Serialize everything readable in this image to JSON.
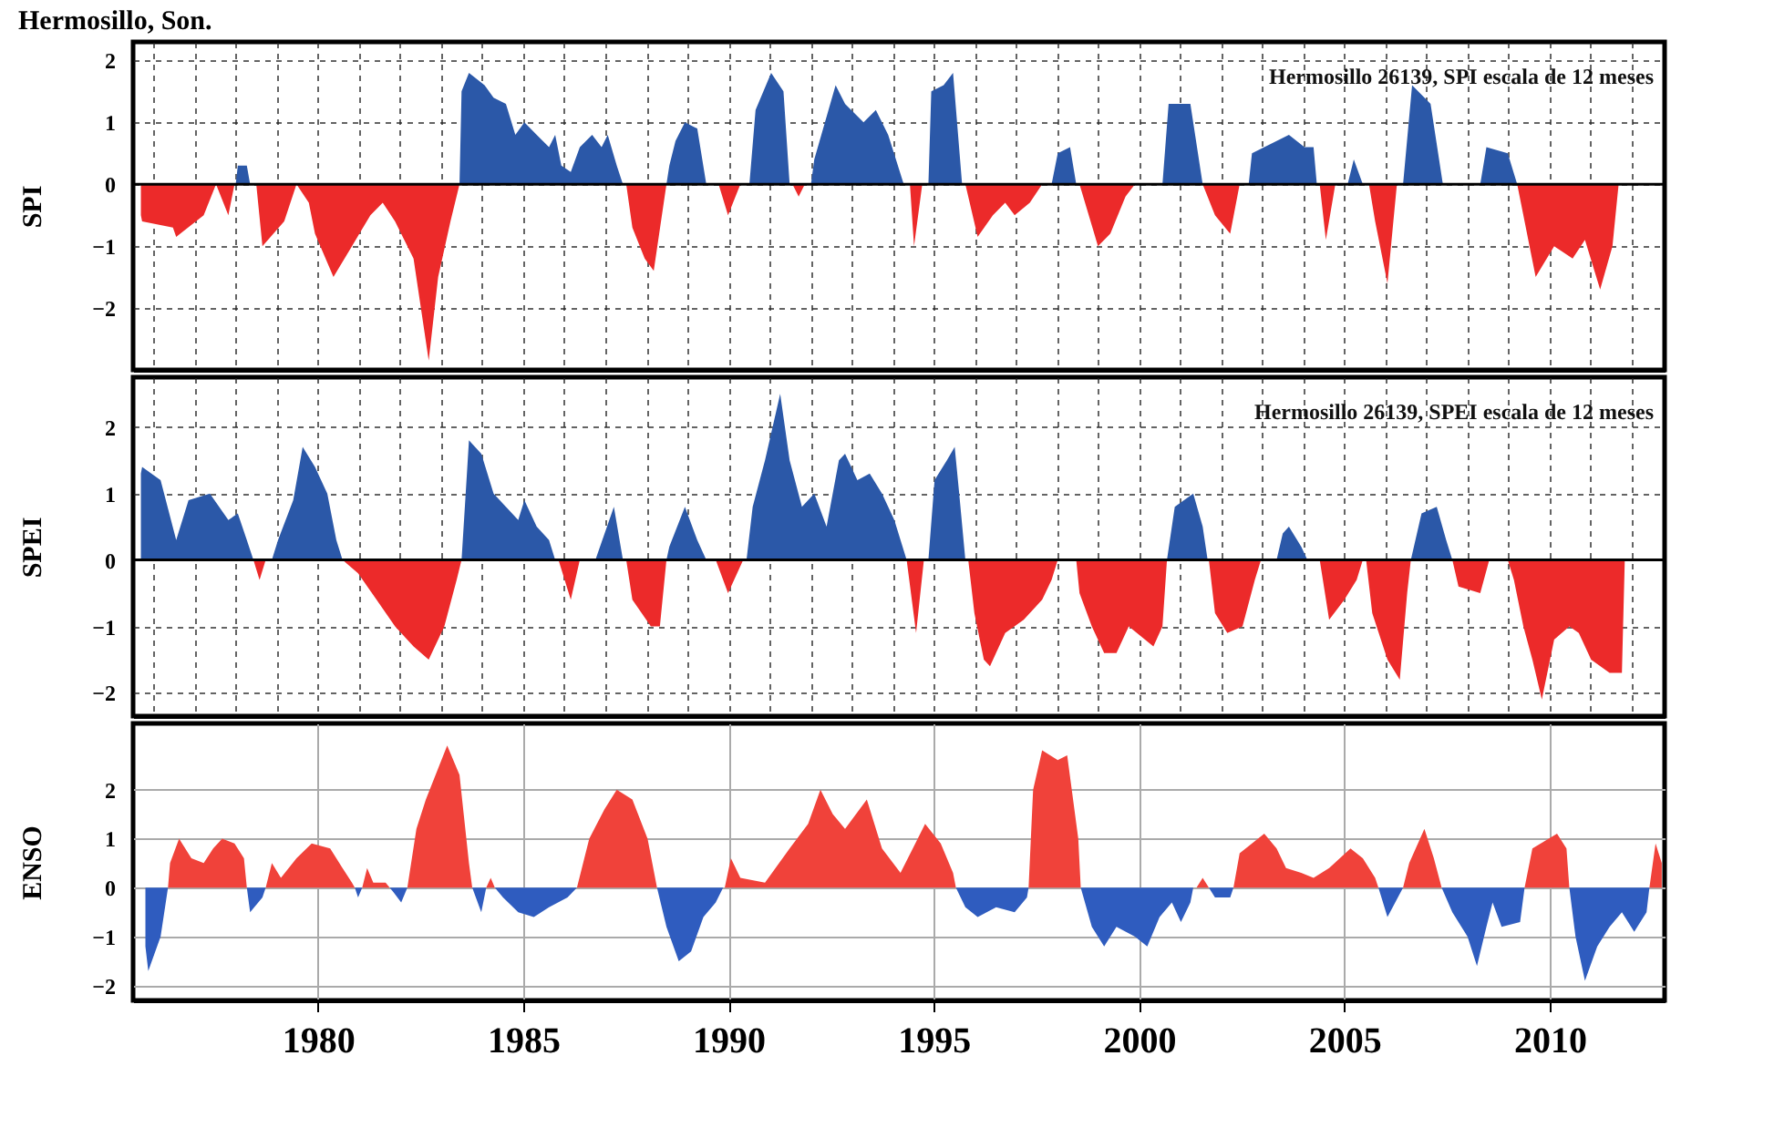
{
  "chart_data": [
    {
      "type": "area",
      "title": "Hermosillo, Son.",
      "ylabel": "SPI",
      "annotations": [
        "Hermosillo 26139, SPI escala de 12 meses"
      ],
      "xlim": [
        1975.5,
        2012.8
      ],
      "ylim": [
        -3,
        2.3
      ],
      "xticks": [
        1976,
        1977,
        1978,
        1979,
        1980,
        1981,
        1982,
        1983,
        1984,
        1985,
        1986,
        1987,
        1988,
        1989,
        1990,
        1991,
        1992,
        1993,
        1994,
        1995,
        1996,
        1997,
        1998,
        1999,
        2000,
        2001,
        2002,
        2003,
        2004,
        2005,
        2006,
        2007,
        2008,
        2009,
        2010,
        2011,
        2012
      ],
      "yticks": [
        -2,
        -1,
        0,
        1,
        2
      ],
      "grid": true,
      "tick_labels": "y",
      "ref_lines": [
        {
          "axis": "y",
          "value": 0
        }
      ],
      "series": [
        {
          "color": "#2b58a8",
          "x": [
            1978.0,
            1978.05,
            1978.27,
            1978.35,
            1983.45,
            1983.5,
            1983.68,
            1984.06,
            1984.28,
            1984.58,
            1984.81,
            1985.03,
            1985.33,
            1985.63,
            1985.78,
            1985.93,
            1986.16,
            1986.38,
            1986.68,
            1986.91,
            1987.06,
            1987.28,
            1987.43,
            1988.49,
            1988.56,
            1988.71,
            1988.94,
            1989.24,
            1989.46,
            1990.51,
            1990.66,
            1991.04,
            1991.34,
            1991.49,
            1992.01,
            1992.09,
            1992.61,
            1992.84,
            1993.29,
            1993.59,
            1993.89,
            1994.27,
            1994.87,
            1994.94,
            1995.24,
            1995.47,
            1995.69,
            1997.87,
            1998.02,
            1998.32,
            1998.47,
            2000.57,
            2000.72,
            2001.25,
            2001.55,
            2002.67,
            2002.75,
            2003.35,
            2003.65,
            2004.03,
            2004.25,
            2004.33,
            2005.08,
            2005.23,
            2005.45,
            2006.43,
            2006.65,
            2007.1,
            2007.4,
            2008.31,
            2008.46,
            2008.98,
            2009.21
          ],
          "values": [
            0,
            0.3,
            0.3,
            0,
            0,
            1.5,
            1.8,
            1.6,
            1.4,
            1.3,
            0.8,
            1.0,
            0.8,
            0.6,
            0.8,
            0.3,
            0.2,
            0.6,
            0.8,
            0.6,
            0.8,
            0.3,
            0,
            0,
            0.3,
            0.7,
            1.0,
            0.9,
            0,
            0,
            1.2,
            1.8,
            1.5,
            0,
            0,
            0.4,
            1.6,
            1.3,
            1.0,
            1.2,
            0.8,
            0,
            0,
            1.5,
            1.6,
            1.8,
            0,
            0,
            0.5,
            0.6,
            0,
            0,
            1.3,
            1.3,
            0,
            0,
            0.5,
            0.7,
            0.8,
            0.6,
            0.6,
            0,
            0,
            0.4,
            0,
            0,
            1.6,
            1.3,
            0,
            0,
            0.6,
            0.5,
            0
          ]
        },
        {
          "color": "#ec2a2a",
          "x": [
            1975.69,
            1975.72,
            1976.47,
            1976.55,
            1977.22,
            1977.52,
            1977.82,
            1977.97,
            1978.5,
            1978.65,
            1979.18,
            1979.48,
            1979.78,
            1979.93,
            1980.38,
            1980.83,
            1981.28,
            1981.58,
            1981.88,
            1982.33,
            1982.7,
            1982.93,
            1983.23,
            1983.45,
            1987.51,
            1987.66,
            1987.96,
            1988.18,
            1988.49,
            1989.76,
            1989.99,
            1990.29,
            1991.56,
            1991.71,
            1991.86,
            1994.42,
            1994.52,
            1994.72,
            1995.77,
            1996.07,
            1996.44,
            1996.74,
            1996.97,
            1997.34,
            1997.64,
            1998.55,
            1999.0,
            1999.3,
            1999.67,
            1999.9,
            2001.55,
            2001.85,
            2002.22,
            2002.45,
            2004.4,
            2004.55,
            2004.78,
            2005.6,
            2005.75,
            2006.05,
            2006.28,
            2009.21,
            2009.51,
            2009.66,
            2010.11,
            2010.56,
            2010.86,
            2011.23,
            2011.53,
            2011.68
          ],
          "values": [
            -0.5,
            -0.6,
            -0.7,
            -0.85,
            -0.5,
            0,
            -0.5,
            0,
            0,
            -1.0,
            -0.6,
            0,
            -0.3,
            -0.8,
            -1.5,
            -1.0,
            -0.5,
            -0.3,
            -0.6,
            -1.2,
            -2.85,
            -1.5,
            -0.6,
            0,
            0,
            -0.7,
            -1.2,
            -1.4,
            0,
            0,
            -0.5,
            0,
            0,
            -0.2,
            0,
            0,
            -1.0,
            0,
            0,
            -0.85,
            -0.5,
            -0.3,
            -0.5,
            -0.3,
            0,
            0,
            -1.0,
            -0.8,
            -0.2,
            0,
            0,
            -0.5,
            -0.8,
            0,
            0,
            -0.9,
            0,
            0,
            -0.6,
            -1.6,
            0,
            0,
            -1.0,
            -1.5,
            -1.0,
            -1.2,
            -0.9,
            -1.7,
            -1.0,
            0
          ]
        }
      ]
    },
    {
      "type": "area",
      "ylabel": "SPEI",
      "annotations": [
        "Hermosillo 26139, SPEI escala de 12 meses"
      ],
      "xlim": [
        1975.5,
        2012.8
      ],
      "ylim": [
        -2.35,
        2.75
      ],
      "xticks": [
        1976,
        1977,
        1978,
        1979,
        1980,
        1981,
        1982,
        1983,
        1984,
        1985,
        1986,
        1987,
        1988,
        1989,
        1990,
        1991,
        1992,
        1993,
        1994,
        1995,
        1996,
        1997,
        1998,
        1999,
        2000,
        2001,
        2002,
        2003,
        2004,
        2005,
        2006,
        2007,
        2008,
        2009,
        2010,
        2011,
        2012
      ],
      "yticks": [
        -2,
        -1,
        0,
        1,
        2
      ],
      "grid": true,
      "tick_labels": "y",
      "ref_lines": [
        {
          "axis": "y",
          "value": 0
        }
      ],
      "series": [
        {
          "color": "#2b58a8",
          "x": [
            1975.69,
            1975.72,
            1976.17,
            1976.55,
            1976.85,
            1977.37,
            1977.82,
            1978.05,
            1978.27,
            1978.43,
            1978.88,
            1979.03,
            1979.4,
            1979.63,
            1979.93,
            1980.23,
            1980.45,
            1980.6,
            1983.5,
            1983.68,
            1983.98,
            1984.28,
            1984.58,
            1984.88,
            1985.03,
            1985.33,
            1985.63,
            1985.78,
            1986.76,
            1987.21,
            1987.43,
            1988.49,
            1988.56,
            1988.94,
            1989.24,
            1989.46,
            1990.44,
            1990.59,
            1990.89,
            1991.26,
            1991.49,
            1991.79,
            1992.09,
            1992.39,
            1992.69,
            1992.84,
            1993.14,
            1993.44,
            1993.74,
            1994.04,
            1994.34,
            1994.87,
            1995.02,
            1995.32,
            1995.51,
            1995.62,
            1995.77,
            2000.68,
            2000.87,
            2001.32,
            2001.55,
            2001.67,
            2003.35,
            2003.5,
            2003.65,
            2003.95,
            2004.1,
            2006.62,
            2006.88,
            2007.25,
            2007.48,
            2007.63
          ],
          "values": [
            1.3,
            1.4,
            1.2,
            0.3,
            0.9,
            1.0,
            0.6,
            0.7,
            0.3,
            0,
            0,
            0.3,
            0.9,
            1.7,
            1.4,
            1.0,
            0.3,
            0,
            0,
            1.8,
            1.6,
            1.0,
            0.8,
            0.6,
            0.9,
            0.5,
            0.3,
            0,
            0,
            0.8,
            0,
            0,
            0.2,
            0.8,
            0.3,
            0,
            0,
            0.8,
            1.5,
            2.5,
            1.5,
            0.8,
            1.0,
            0.5,
            1.5,
            1.6,
            1.2,
            1.3,
            1.0,
            0.6,
            0,
            0,
            1.2,
            1.5,
            1.7,
            1.0,
            0,
            0,
            0.8,
            1.0,
            0.5,
            0,
            0,
            0.4,
            0.5,
            0.2,
            0,
            0,
            0.7,
            0.8,
            0.3,
            0
          ]
        },
        {
          "color": "#ec2a2a",
          "x": [
            1978.43,
            1978.58,
            1978.73,
            1980.6,
            1980.98,
            1981.43,
            1981.88,
            1982.33,
            1982.7,
            1983.08,
            1983.38,
            1983.5,
            1985.86,
            1986.16,
            1986.38,
            1987.51,
            1987.66,
            1988.11,
            1988.33,
            1988.49,
            1989.69,
            1989.99,
            1990.36,
            1994.34,
            1994.57,
            1994.76,
            1995.84,
            1995.99,
            1996.22,
            1996.37,
            1996.74,
            1997.19,
            1997.64,
            1997.87,
            1998.02,
            1998.47,
            1998.55,
            1998.85,
            1999.15,
            1999.45,
            1999.75,
            2000.35,
            2000.57,
            2000.68,
            2001.7,
            2001.85,
            2002.15,
            2002.52,
            2002.82,
            2002.97,
            2004.4,
            2004.63,
            2005.0,
            2005.3,
            2005.45,
            2005.53,
            2005.68,
            2006.05,
            2006.35,
            2006.53,
            2006.62,
            2007.63,
            2007.78,
            2008.31,
            2008.53,
            2008.98,
            2009.13,
            2009.36,
            2009.58,
            2009.81,
            2010.11,
            2010.48,
            2010.71,
            2011.01,
            2011.46,
            2011.76,
            2011.83
          ],
          "values": [
            0,
            -0.3,
            0,
            0,
            -0.2,
            -0.6,
            -1.0,
            -1.3,
            -1.5,
            -1.0,
            -0.3,
            0,
            0,
            -0.6,
            0,
            0,
            -0.6,
            -1.0,
            -1.0,
            0,
            0,
            -0.5,
            0,
            0,
            -1.1,
            0,
            0,
            -0.8,
            -1.5,
            -1.6,
            -1.1,
            -0.9,
            -0.6,
            -0.3,
            0,
            0,
            -0.5,
            -1.0,
            -1.4,
            -1.4,
            -1.0,
            -1.3,
            -1.0,
            0,
            0,
            -0.8,
            -1.1,
            -1.0,
            -0.3,
            0,
            0,
            -0.9,
            -0.6,
            -0.3,
            0,
            0,
            -0.8,
            -1.5,
            -1.8,
            -0.5,
            0,
            0,
            -0.4,
            -0.5,
            0,
            0,
            -0.3,
            -1.0,
            -1.5,
            -2.1,
            -1.2,
            -1.0,
            -1.1,
            -1.5,
            -1.7,
            -1.7,
            0
          ]
        }
      ]
    },
    {
      "type": "area",
      "ylabel": "ENSO",
      "xlim": [
        1975.5,
        2012.8
      ],
      "ylim": [
        -2.3,
        3.35
      ],
      "xticks": [
        1980,
        1985,
        1990,
        1995,
        2000,
        2005,
        2010
      ],
      "yticks": [
        -2,
        -1,
        0,
        1,
        2
      ],
      "grid": true,
      "series": [
        {
          "color": "#f0423a",
          "x": [
            1976.35,
            1976.4,
            1976.62,
            1976.92,
            1977.22,
            1977.45,
            1977.67,
            1977.97,
            1978.2,
            1978.27,
            1978.73,
            1978.88,
            1979.1,
            1979.48,
            1979.85,
            1980.3,
            1980.6,
            1980.83,
            1980.9,
            1981.08,
            1981.2,
            1981.35,
            1981.5,
            1981.65,
            1981.75,
            1982.18,
            1982.4,
            1982.63,
            1983.15,
            1983.45,
            1983.68,
            1983.76,
            1984.1,
            1984.21,
            1984.31,
            1986.31,
            1986.61,
            1986.98,
            1987.28,
            1987.66,
            1988.03,
            1988.26,
            1989.91,
            1990.06,
            1990.29,
            1990.89,
            1991.49,
            1991.94,
            1992.24,
            1992.54,
            1992.84,
            1993.37,
            1993.74,
            1994.19,
            1994.49,
            1994.79,
            1995.17,
            1995.47,
            1995.54,
            1997.31,
            1997.42,
            1997.64,
            1998.02,
            1998.25,
            1998.52,
            1998.58,
            2001.4,
            2001.55,
            2001.7,
            2002.3,
            2002.45,
            2002.75,
            2003.05,
            2003.35,
            2003.58,
            2003.95,
            2004.25,
            2004.63,
            2005.15,
            2005.45,
            2005.75,
            2005.83,
            2006.43,
            2006.58,
            2006.95,
            2007.18,
            2007.37,
            2009.39,
            2009.58,
            2010.18,
            2010.41,
            2010.48,
            2012.43,
            2012.58,
            2012.73
          ],
          "values": [
            0,
            0.5,
            1.0,
            0.6,
            0.5,
            0.8,
            1.0,
            0.9,
            0.6,
            0,
            0,
            0.5,
            0.2,
            0.6,
            0.9,
            0.8,
            0.4,
            0.1,
            0,
            0,
            0.4,
            0.1,
            0.1,
            0.1,
            0,
            0,
            1.2,
            1.8,
            2.9,
            2.3,
            0.5,
            0,
            0,
            0.2,
            0,
            0,
            1.0,
            1.6,
            2.0,
            1.8,
            1.0,
            0,
            0,
            0.6,
            0.2,
            0.1,
            0.8,
            1.3,
            2.0,
            1.5,
            1.2,
            1.8,
            0.8,
            0.3,
            0.8,
            1.3,
            0.9,
            0.3,
            0,
            0,
            2.0,
            2.8,
            2.6,
            2.7,
            1.0,
            0,
            0,
            0.2,
            0,
            0,
            0.7,
            0.9,
            1.1,
            0.8,
            0.4,
            0.3,
            0.2,
            0.4,
            0.8,
            0.6,
            0.2,
            0,
            0,
            0.5,
            1.2,
            0.6,
            0,
            0,
            0.8,
            1.1,
            0.8,
            0,
            0,
            0.9,
            0.5
          ]
        },
        {
          "color": "#2f5cbf",
          "x": [
            1975.8,
            1975.87,
            1976.17,
            1976.35,
            1978.27,
            1978.35,
            1978.65,
            1978.73,
            1980.9,
            1980.98,
            1981.08,
            1981.75,
            1981.85,
            1982.03,
            1982.18,
            1983.76,
            1983.98,
            1984.1,
            1984.31,
            1984.51,
            1984.88,
            1985.26,
            1985.63,
            1986.08,
            1986.31,
            1988.26,
            1988.49,
            1988.79,
            1989.09,
            1989.39,
            1989.69,
            1989.87,
            1995.54,
            1995.77,
            1996.07,
            1996.52,
            1996.97,
            1997.27,
            1997.31,
            1998.58,
            1998.85,
            1999.15,
            1999.45,
            1999.9,
            2000.2,
            2000.5,
            2000.8,
            2001.02,
            2001.25,
            2001.32,
            2001.7,
            2001.85,
            2002.22,
            2002.3,
            2005.83,
            2006.05,
            2006.43,
            2007.37,
            2007.63,
            2008.0,
            2008.23,
            2008.46,
            2008.61,
            2008.83,
            2009.28,
            2009.39,
            2010.48,
            2010.63,
            2010.86,
            2011.16,
            2011.46,
            2011.76,
            2012.06,
            2012.36,
            2012.43
          ],
          "values": [
            -1.2,
            -1.7,
            -1.0,
            0,
            0,
            -0.5,
            -0.2,
            0,
            0,
            -0.2,
            0,
            0,
            -0.1,
            -0.3,
            0,
            0,
            -0.5,
            0,
            0,
            -0.2,
            -0.5,
            -0.6,
            -0.4,
            -0.2,
            0,
            0,
            -0.8,
            -1.5,
            -1.3,
            -0.6,
            -0.3,
            0,
            0,
            -0.4,
            -0.6,
            -0.4,
            -0.5,
            -0.2,
            0,
            0,
            -0.8,
            -1.2,
            -0.8,
            -1.0,
            -1.2,
            -0.6,
            -0.3,
            -0.7,
            -0.3,
            0,
            0,
            -0.2,
            -0.2,
            0,
            0,
            -0.6,
            0,
            0,
            -0.5,
            -1.0,
            -1.6,
            -0.8,
            -0.3,
            -0.8,
            -0.7,
            0,
            0,
            -1.0,
            -1.9,
            -1.2,
            -0.8,
            -0.5,
            -0.9,
            -0.5,
            0
          ]
        }
      ]
    }
  ]
}
